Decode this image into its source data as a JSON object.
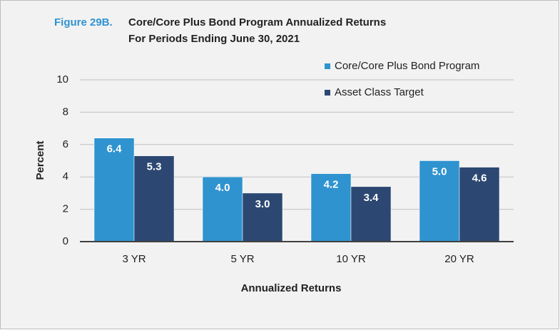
{
  "chart_data": {
    "type": "bar",
    "figure_label": "Figure 29B.",
    "title": "Core/Core Plus Bond Program Annualized Returns",
    "subtitle": "For Periods Ending June 30, 2021",
    "x_label": "Annualized Returns",
    "y_label": "Percent",
    "categories": [
      "3 YR",
      "5 YR",
      "10 YR",
      "20 YR"
    ],
    "series": [
      {
        "name": "Core/Core Plus Bond Program",
        "color": "#2f93cf",
        "values": [
          6.4,
          4.0,
          4.2,
          5.0
        ],
        "value_labels": [
          "6.4",
          "4.0",
          "4.2",
          "5.0"
        ]
      },
      {
        "name": "Asset Class Target",
        "color": "#2c4872",
        "values": [
          5.3,
          3.0,
          3.4,
          4.6
        ],
        "value_labels": [
          "5.3",
          "3.0",
          "3.4",
          "4.6"
        ]
      }
    ],
    "ylim": [
      0,
      10
    ],
    "yticks": [
      0,
      2,
      4,
      6,
      8,
      10
    ],
    "grid": true,
    "legend": "top-right"
  }
}
